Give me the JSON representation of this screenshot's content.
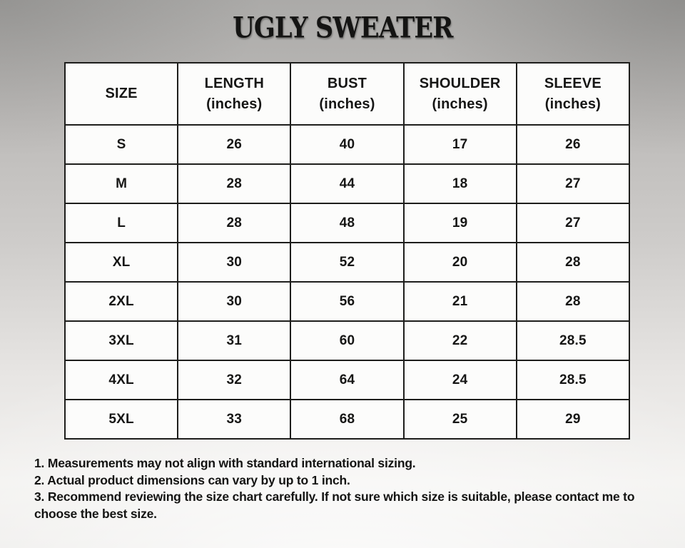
{
  "page": {
    "title": "UGLY SWEATER"
  },
  "table": {
    "columns": [
      {
        "label": "SIZE",
        "sub": ""
      },
      {
        "label": "LENGTH",
        "sub": "(inches)"
      },
      {
        "label": "BUST",
        "sub": "(inches)"
      },
      {
        "label": "SHOULDER",
        "sub": "(inches)"
      },
      {
        "label": "SLEEVE",
        "sub": "(inches)"
      }
    ],
    "rows": [
      [
        "S",
        "26",
        "40",
        "17",
        "26"
      ],
      [
        "M",
        "28",
        "44",
        "18",
        "27"
      ],
      [
        "L",
        "28",
        "48",
        "19",
        "27"
      ],
      [
        "XL",
        "30",
        "52",
        "20",
        "28"
      ],
      [
        "2XL",
        "30",
        "56",
        "21",
        "28"
      ],
      [
        "3XL",
        "31",
        "60",
        "22",
        "28.5"
      ],
      [
        "4XL",
        "32",
        "64",
        "24",
        "28.5"
      ],
      [
        "5XL",
        "33",
        "68",
        "25",
        "29"
      ]
    ]
  },
  "footnotes": {
    "lines": [
      "1. Measurements may not align with standard international sizing.",
      "2. Actual product dimensions can vary by up to 1 inch.",
      "3. Recommend reviewing the size chart carefully. If not sure which size is suitable, please contact me to",
      "choose the best size."
    ]
  },
  "colors": {
    "border": "#1e1e1c",
    "cell_background": "#fcfcfb",
    "text": "#161615",
    "page_background_top": "#abaaa8",
    "page_background_bottom": "#eeedeb"
  }
}
